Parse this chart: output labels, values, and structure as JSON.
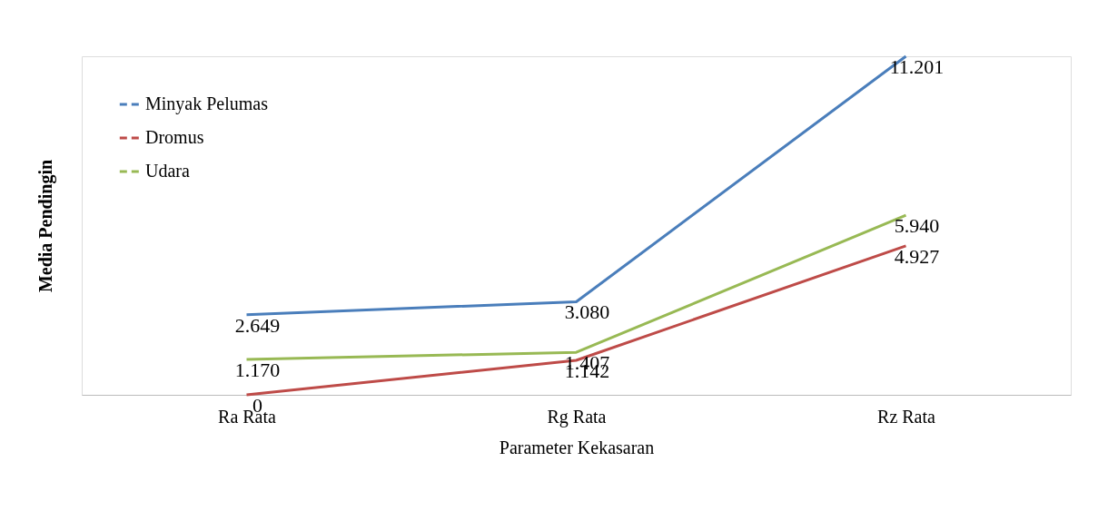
{
  "chart_data": {
    "type": "line",
    "xlabel": "Parameter Kekasaran",
    "ylabel": "Media Pendingin",
    "categories": [
      "Ra Rata",
      "Rg Rata",
      "Rz Rata"
    ],
    "series": [
      {
        "name": "Minyak Pelumas",
        "color": "#4a7ebb",
        "values": [
          2.649,
          3.08,
          11.201
        ],
        "value_labels": [
          "2.649",
          "3.080",
          "11.201"
        ]
      },
      {
        "name": "Dromus",
        "color": "#be4b48",
        "values": [
          0,
          1.142,
          4.927
        ],
        "value_labels": [
          "0",
          "1.142",
          "4.927"
        ]
      },
      {
        "name": "Udara",
        "color": "#98b954",
        "values": [
          1.17,
          1.407,
          5.94
        ],
        "value_labels": [
          "1.170",
          "1.407",
          "5.940"
        ]
      }
    ],
    "legend": "top left",
    "grid": false,
    "marker": "none",
    "line_style": "solid",
    "tick_labels": "x"
  }
}
